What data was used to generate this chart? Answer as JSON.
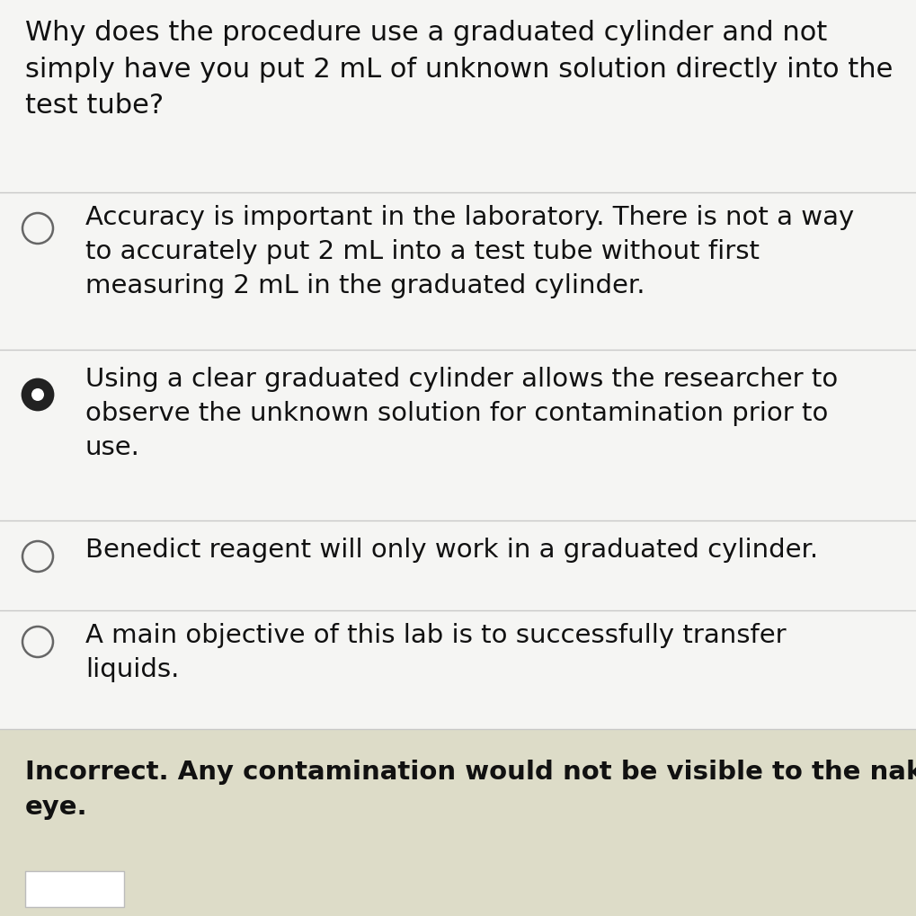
{
  "bg_color": "#e8e8e8",
  "white_bg": "#f5f5f3",
  "tan_bg": "#dddcc8",
  "question": "Why does the procedure use a graduated cylinder and not\nsimply have you put 2 mL of unknown solution directly into the\ntest tube?",
  "options": [
    {
      "text": "Accuracy is important in the laboratory. There is not a way\nto accurately put 2 mL into a test tube without first\nmeasuring 2 mL in the graduated cylinder.",
      "selected": false
    },
    {
      "text": "Using a clear graduated cylinder allows the researcher to\nobserve the unknown solution for contamination prior to\nuse.",
      "selected": true
    },
    {
      "text": "Benedict reagent will only work in a graduated cylinder.",
      "selected": false
    },
    {
      "text": "A main objective of this lab is to successfully transfer\nliquids.",
      "selected": false
    }
  ],
  "feedback": "Incorrect. Any contamination would not be visible to the naked\neye.",
  "question_fontsize": 22,
  "option_fontsize": 21,
  "feedback_fontsize": 21,
  "text_color": "#111111",
  "circle_color": "#666666",
  "selected_fill": "#222222",
  "divider_color": "#c8c8c8"
}
